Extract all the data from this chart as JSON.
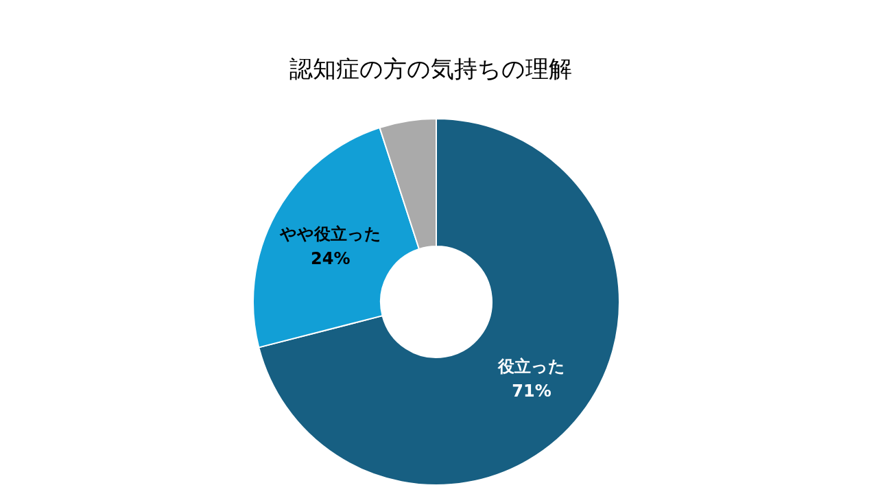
{
  "chart_data": {
    "type": "donut",
    "title": "認知症の方の気持ちの理解",
    "categories": [
      "役立った",
      "やや役立った",
      null
    ],
    "values": [
      71,
      24,
      5
    ],
    "value_labels": [
      "71%",
      "24%",
      null
    ],
    "colors": [
      "#175f82",
      "#129fd6",
      "#aaaaaa"
    ]
  }
}
